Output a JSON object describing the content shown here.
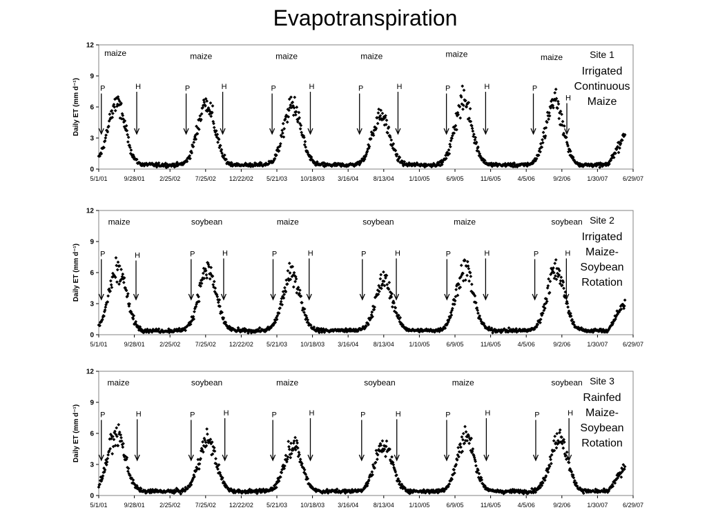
{
  "title": "Evapotranspiration",
  "charts": [
    {
      "site_label": [
        "Site 1",
        "Irrigated",
        "Continuous",
        "Maize"
      ],
      "crops": [
        "maize",
        "maize",
        "maize",
        "maize",
        "maize",
        "maize"
      ],
      "crop_x": [
        "2001-07-10",
        "2002-07-06",
        "2003-07-01",
        "2004-06-23",
        "2005-06-16",
        "2006-07-21"
      ],
      "crop_level": [
        11.2,
        10.9,
        10.9,
        10.9,
        11.1,
        10.8
      ],
      "plant_dates": [
        "2001-05-12",
        "2002-05-04",
        "2003-05-01",
        "2004-05-03",
        "2005-05-04",
        "2006-05-05"
      ],
      "harvest_dates": [
        "2001-10-08",
        "2002-10-05",
        "2003-10-09",
        "2004-10-12",
        "2005-10-16",
        "2006-09-23"
      ],
      "harvest_label_level": [
        7.6,
        7.6,
        7.6,
        7.6,
        7.6,
        6.5
      ]
    },
    {
      "site_label": [
        "Site 2",
        "Irrigated",
        "Maize-",
        "Soybean",
        "Rotation"
      ],
      "crops": [
        "maize",
        "soybean",
        "maize",
        "soybean",
        "maize",
        "soybean"
      ],
      "crop_x": [
        "2001-07-26",
        "2002-07-30",
        "2003-07-06",
        "2004-07-21",
        "2005-07-20",
        "2006-09-23"
      ],
      "crop_level": [
        10.9,
        10.9,
        10.9,
        10.9,
        10.9,
        10.9
      ],
      "plant_dates": [
        "2001-05-12",
        "2002-05-25",
        "2003-05-05",
        "2004-05-15",
        "2005-05-06",
        "2006-05-11"
      ],
      "harvest_dates": [
        "2001-10-05",
        "2002-10-09",
        "2003-10-04",
        "2004-10-05",
        "2005-10-16",
        "2006-09-21"
      ],
      "harvest_label_level": [
        7.3,
        7.5,
        7.5,
        7.5,
        7.5,
        7.5
      ]
    },
    {
      "site_label": [
        "Site 3",
        "Rainfed",
        "Maize-",
        "Soybean",
        "Rotation"
      ],
      "crops": [
        "maize",
        "soybean",
        "maize",
        "soybean",
        "maize",
        "soybean"
      ],
      "crop_x": [
        "2001-07-23",
        "2002-07-30",
        "2003-07-04",
        "2004-07-27",
        "2005-07-13",
        "2006-09-23"
      ],
      "crop_level": [
        10.9,
        10.9,
        10.9,
        10.9,
        10.9,
        10.9
      ],
      "plant_dates": [
        "2001-05-12",
        "2002-05-25",
        "2003-05-04",
        "2004-05-12",
        "2005-05-05",
        "2006-05-15"
      ],
      "harvest_dates": [
        "2001-10-10",
        "2002-10-14",
        "2003-10-09",
        "2004-10-07",
        "2005-10-19",
        "2006-10-02"
      ],
      "harvest_label_level": [
        7.5,
        7.6,
        7.6,
        7.5,
        7.6,
        7.6
      ]
    }
  ],
  "chart_data": [
    {
      "type": "scatter",
      "title": "",
      "xlabel": "",
      "ylabel": "Daily ET (mm d⁻¹)",
      "ylim": [
        0,
        12
      ],
      "yticks": [
        0,
        3,
        6,
        9,
        12
      ],
      "xlim": [
        "2001-05-01",
        "2007-06-29"
      ],
      "x_tick_labels": [
        "5/1/01",
        "9/28/01",
        "2/25/02",
        "7/25/02",
        "12/22/02",
        "5/21/03",
        "10/18/03",
        "3/16/04",
        "8/13/04",
        "1/10/05",
        "6/9/05",
        "11/6/05",
        "4/5/06",
        "9/2/06",
        "1/30/07",
        "6/29/07"
      ],
      "x_tick_dates": [
        "2001-05-01",
        "2001-09-28",
        "2002-02-25",
        "2002-07-25",
        "2002-12-22",
        "2003-05-21",
        "2003-10-18",
        "2004-03-16",
        "2004-08-13",
        "2005-01-10",
        "2005-06-09",
        "2005-11-06",
        "2006-04-05",
        "2006-09-02",
        "2007-01-30",
        "2007-06-29"
      ],
      "grid": false,
      "legend": "none",
      "series": [
        {
          "marker": "diamond",
          "peaks": [
            {
              "date": "2001-07-15",
              "value": 6.0
            },
            {
              "date": "2002-07-28",
              "value": 6.0
            },
            {
              "date": "2003-07-25",
              "value": 5.8
            },
            {
              "date": "2004-08-01",
              "value": 4.9
            },
            {
              "date": "2005-07-15",
              "value": 6.2
            },
            {
              "date": "2006-08-02",
              "value": 6.2
            }
          ],
          "trailing_rise": {
            "start": "2007-03-15",
            "end": "2007-05-26",
            "value": 3.0
          },
          "dormant_level": 0.4
        }
      ]
    },
    {
      "type": "scatter",
      "title": "",
      "xlabel": "",
      "ylabel": "Daily ET (mm d⁻¹)",
      "ylim": [
        0,
        12
      ],
      "yticks": [
        0,
        3,
        6,
        9,
        12
      ],
      "xlim": [
        "2001-05-01",
        "2007-06-29"
      ],
      "x_tick_labels": [
        "5/1/01",
        "9/28/01",
        "2/25/02",
        "7/25/02",
        "12/22/02",
        "5/21/03",
        "10/18/03",
        "3/16/04",
        "8/13/04",
        "1/10/05",
        "6/9/05",
        "11/6/05",
        "4/5/06",
        "9/2/06",
        "1/30/07",
        "6/29/07"
      ],
      "x_tick_dates": [
        "2001-05-01",
        "2001-09-28",
        "2002-02-25",
        "2002-07-25",
        "2002-12-22",
        "2003-05-21",
        "2003-10-18",
        "2004-03-16",
        "2004-08-13",
        "2005-01-10",
        "2005-06-09",
        "2005-11-06",
        "2006-04-05",
        "2006-09-02",
        "2007-01-30",
        "2007-06-29"
      ],
      "grid": false,
      "legend": "none",
      "series": [
        {
          "marker": "diamond",
          "peaks": [
            {
              "date": "2001-07-20",
              "value": 6.0
            },
            {
              "date": "2002-08-02",
              "value": 6.0
            },
            {
              "date": "2003-07-22",
              "value": 5.6
            },
            {
              "date": "2004-08-15",
              "value": 4.8
            },
            {
              "date": "2005-07-20",
              "value": 6.0
            },
            {
              "date": "2006-08-08",
              "value": 6.0
            }
          ],
          "trailing_rise": {
            "start": "2007-03-15",
            "end": "2007-05-26",
            "value": 2.8
          },
          "dormant_level": 0.4
        }
      ]
    },
    {
      "type": "scatter",
      "title": "",
      "xlabel": "",
      "ylabel": "Daily ET (mm d⁻¹)",
      "ylim": [
        0,
        12
      ],
      "yticks": [
        0,
        3,
        6,
        9,
        12
      ],
      "xlim": [
        "2001-05-01",
        "2007-06-29"
      ],
      "x_tick_labels": [
        "5/1/01",
        "9/28/01",
        "2/25/02",
        "7/25/02",
        "12/22/02",
        "5/21/03",
        "10/18/03",
        "3/16/04",
        "8/13/04",
        "1/10/05",
        "6/9/05",
        "11/6/05",
        "4/5/06",
        "9/2/06",
        "1/30/07",
        "6/29/07"
      ],
      "x_tick_dates": [
        "2001-05-01",
        "2001-09-28",
        "2002-02-25",
        "2002-07-25",
        "2002-12-22",
        "2003-05-21",
        "2003-10-18",
        "2004-03-16",
        "2004-08-13",
        "2005-01-10",
        "2005-06-09",
        "2005-11-06",
        "2006-04-05",
        "2006-09-02",
        "2007-01-30",
        "2007-06-29"
      ],
      "grid": false,
      "legend": "none",
      "series": [
        {
          "marker": "diamond",
          "peaks": [
            {
              "date": "2001-07-15",
              "value": 5.6
            },
            {
              "date": "2002-08-02",
              "value": 5.0
            },
            {
              "date": "2003-07-28",
              "value": 4.6
            },
            {
              "date": "2004-08-12",
              "value": 4.6
            },
            {
              "date": "2005-07-25",
              "value": 5.3
            },
            {
              "date": "2006-08-20",
              "value": 5.2
            }
          ],
          "trailing_rise": {
            "start": "2007-03-15",
            "end": "2007-05-26",
            "value": 2.4
          },
          "dormant_level": 0.4
        }
      ]
    }
  ]
}
